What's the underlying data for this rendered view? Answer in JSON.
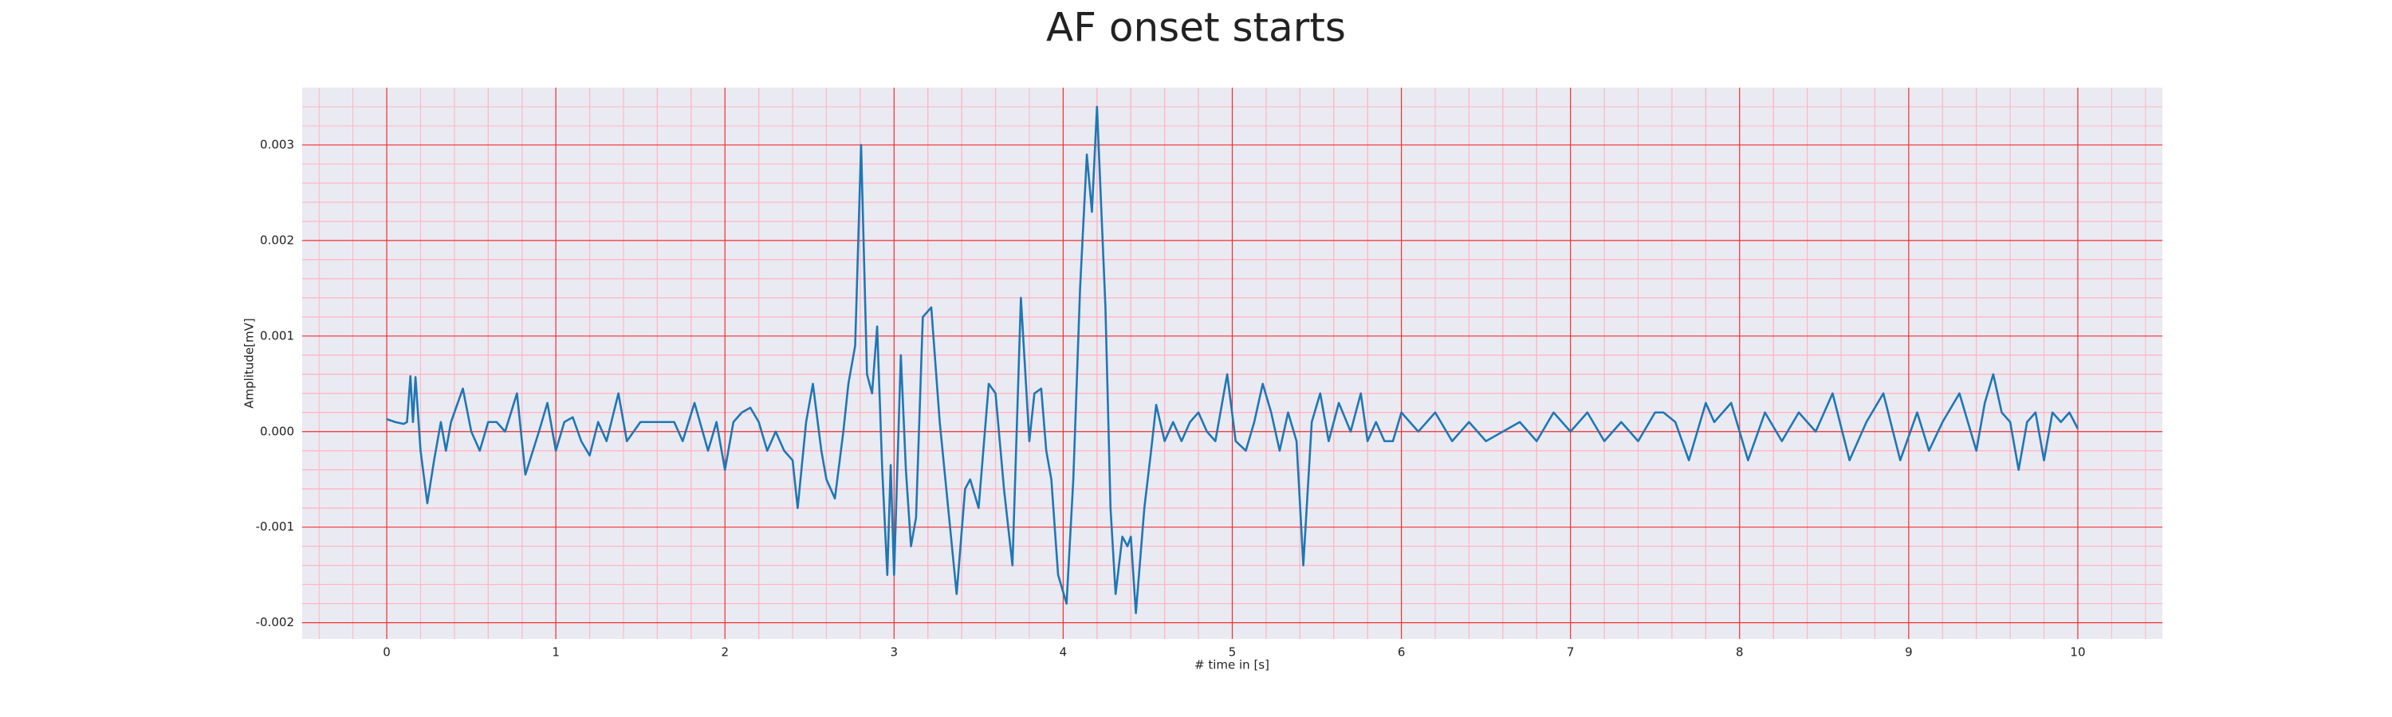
{
  "chart_data": {
    "type": "line",
    "title": "AF onset starts",
    "xlabel": "# time in [s]",
    "ylabel": "Amplitude[mV]",
    "x": [
      0,
      0.05,
      0.1,
      0.12,
      0.14,
      0.155,
      0.17,
      0.2,
      0.24,
      0.28,
      0.32,
      0.35,
      0.38,
      0.45,
      0.5,
      0.55,
      0.6,
      0.65,
      0.7,
      0.77,
      0.82,
      0.9,
      0.95,
      1.0,
      1.05,
      1.1,
      1.15,
      1.2,
      1.25,
      1.3,
      1.37,
      1.42,
      1.5,
      1.6,
      1.7,
      1.75,
      1.82,
      1.9,
      1.95,
      2.0,
      2.05,
      2.1,
      2.15,
      2.2,
      2.25,
      2.3,
      2.35,
      2.4,
      2.43,
      2.48,
      2.52,
      2.57,
      2.6,
      2.65,
      2.7,
      2.73,
      2.77,
      2.805,
      2.84,
      2.87,
      2.9,
      2.93,
      2.96,
      2.98,
      3.0,
      3.04,
      3.07,
      3.1,
      3.13,
      3.17,
      3.22,
      3.27,
      3.32,
      3.37,
      3.42,
      3.45,
      3.5,
      3.56,
      3.6,
      3.65,
      3.7,
      3.75,
      3.8,
      3.83,
      3.87,
      3.9,
      3.93,
      3.97,
      4.02,
      4.06,
      4.1,
      4.14,
      4.17,
      4.2,
      4.25,
      4.28,
      4.31,
      4.35,
      4.38,
      4.4,
      4.43,
      4.48,
      4.52,
      4.55,
      4.6,
      4.65,
      4.7,
      4.75,
      4.8,
      4.85,
      4.9,
      4.97,
      5.02,
      5.08,
      5.13,
      5.18,
      5.23,
      5.28,
      5.33,
      5.38,
      5.42,
      5.47,
      5.52,
      5.57,
      5.63,
      5.7,
      5.76,
      5.8,
      5.85,
      5.9,
      5.95,
      6.0,
      6.1,
      6.2,
      6.3,
      6.4,
      6.5,
      6.6,
      6.7,
      6.8,
      6.9,
      7.0,
      7.1,
      7.2,
      7.3,
      7.4,
      7.5,
      7.55,
      7.62,
      7.7,
      7.8,
      7.85,
      7.95,
      8.05,
      8.15,
      8.25,
      8.35,
      8.45,
      8.55,
      8.65,
      8.75,
      8.85,
      8.95,
      9.05,
      9.12,
      9.2,
      9.3,
      9.4,
      9.45,
      9.5,
      9.55,
      9.6,
      9.65,
      9.7,
      9.75,
      9.8,
      9.85,
      9.9,
      9.95,
      10.0
    ],
    "values": [
      0.00013,
      0.0001,
      8e-05,
      0.0001,
      0.00058,
      0.0001,
      0.00057,
      -0.0002,
      -0.00075,
      -0.0003,
      0.0001,
      -0.0002,
      0.0001,
      0.00045,
      0,
      -0.0002,
      0.0001,
      0.0001,
      0,
      0.0004,
      -0.00045,
      0,
      0.0003,
      -0.0002,
      0.0001,
      0.00015,
      -0.0001,
      -0.00025,
      0.0001,
      -0.0001,
      0.0004,
      -0.0001,
      0.0001,
      0.0001,
      0.0001,
      -0.0001,
      0.0003,
      -0.0002,
      0.0001,
      -0.0004,
      0.0001,
      0.0002,
      0.00025,
      0.0001,
      -0.0002,
      0,
      -0.0002,
      -0.0003,
      -0.0008,
      0.0001,
      0.0005,
      -0.0002,
      -0.0005,
      -0.0007,
      0,
      0.0005,
      0.0009,
      0.003,
      0.0006,
      0.0004,
      0.0011,
      -0.0004,
      -0.0015,
      -0.00035,
      -0.0015,
      0.0008,
      -0.0004,
      -0.0012,
      -0.0009,
      0.0012,
      0.0013,
      0.0001,
      -0.0008,
      -0.0017,
      -0.0006,
      -0.0005,
      -0.0008,
      0.0005,
      0.0004,
      -0.0006,
      -0.0014,
      0.0014,
      -0.0001,
      0.0004,
      0.00045,
      -0.0002,
      -0.0005,
      -0.0015,
      -0.0018,
      -0.0005,
      0.0015,
      0.0029,
      0.0023,
      0.0034,
      0.0013,
      -0.0008,
      -0.0017,
      -0.0011,
      -0.0012,
      -0.0011,
      -0.0019,
      -0.0008,
      -0.0002,
      0.00028,
      -0.0001,
      0.0001,
      -0.0001,
      0.0001,
      0.0002,
      0,
      -0.0001,
      0.0006,
      -0.0001,
      -0.0002,
      0.0001,
      0.0005,
      0.0002,
      -0.0002,
      0.0002,
      -0.0001,
      -0.0014,
      0.0001,
      0.0004,
      -0.0001,
      0.0003,
      0,
      0.0004,
      -0.0001,
      0.0001,
      -0.0001,
      -0.0001,
      0.0002,
      0,
      0.0002,
      -0.0001,
      0.0001,
      -0.0001,
      0,
      0.0001,
      -0.0001,
      0.0002,
      0,
      0.0002,
      -0.0001,
      0.0001,
      -0.0001,
      0.0002,
      0.0002,
      0.0001,
      -0.0003,
      0.0003,
      0.0001,
      0.0003,
      -0.0003,
      0.0002,
      -0.0001,
      0.0002,
      0,
      0.0004,
      -0.0003,
      0.0001,
      0.0004,
      -0.0003,
      0.0002,
      -0.0002,
      0.0001,
      0.0004,
      -0.0002,
      0.0003,
      0.0006,
      0.0002,
      0.0001,
      -0.0004,
      0.0001,
      0.0002,
      -0.0003,
      0.0002,
      0.0001,
      0.0002,
      3e-05
    ],
    "color": "#1f77b4",
    "xlim": [
      -0.5,
      10.5
    ],
    "xticks": [
      0,
      1,
      2,
      3,
      4,
      5,
      6,
      7,
      8,
      9,
      10
    ],
    "ylim": [
      -0.00217,
      0.0036
    ],
    "yticks": [
      -0.002,
      -0.001,
      {
        "value": 0,
        "label": "0.000"
      },
      0.001,
      0.002,
      0.003
    ],
    "grid": true,
    "minor_grid": true
  }
}
